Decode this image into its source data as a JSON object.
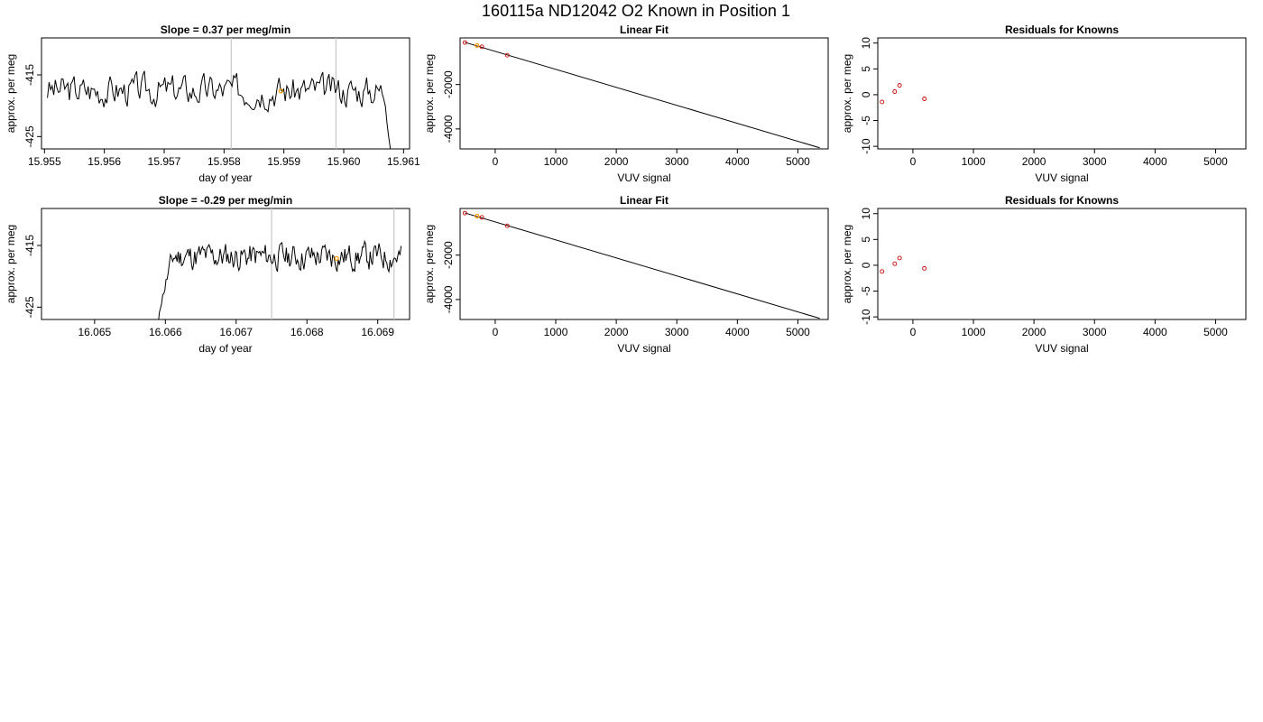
{
  "figure": {
    "title": "160115a     ND12042   O2 Known in Position  1"
  },
  "colors": {
    "line": "#000000",
    "grid_marker": "#c8c8c8",
    "known_point": "#cc0000",
    "highlight_point": "#ff9900"
  },
  "chart_data": [
    {
      "type": "line",
      "title": "Slope =  0.37  per meg/min",
      "xlabel": "day of year",
      "ylabel": "approx. per meg",
      "xlim": [
        15.95495,
        15.9611
      ],
      "ylim": [
        -427,
        -409
      ],
      "xticks": [
        15.955,
        15.956,
        15.957,
        15.958,
        15.959,
        15.96,
        15.961
      ],
      "xtick_labels": [
        "15.955",
        "15.956",
        "15.957",
        "15.958",
        "15.959",
        "15.960",
        "15.961"
      ],
      "yticks": [
        -425,
        -415
      ],
      "ytick_labels": [
        "-425",
        "-415"
      ],
      "vlines": [
        15.95812,
        15.95987
      ],
      "highlight": [
        {
          "x": 15.95895,
          "y": -417.6
        }
      ],
      "trace": {
        "x_start": 15.95505,
        "x_end": 15.9608,
        "base": -417.5,
        "amp": 2.2,
        "seed": 3,
        "end_drop": true,
        "drop_to": -429
      }
    },
    {
      "type": "scatter",
      "title": "Linear Fit",
      "xlabel": "VUV signal",
      "ylabel": "approx. per meg",
      "xlim": [
        -580,
        5500
      ],
      "ylim": [
        -4900,
        100
      ],
      "xticks": [
        0,
        1000,
        2000,
        3000,
        4000,
        5000
      ],
      "xtick_labels": [
        "0",
        "1000",
        "2000",
        "3000",
        "4000",
        "5000"
      ],
      "yticks": [
        -4000,
        -2000
      ],
      "ytick_labels": [
        "-4000",
        "-2000"
      ],
      "fit_line": {
        "x": [
          -500,
          5360
        ],
        "y": [
          -100,
          -4850
        ]
      },
      "points": [
        {
          "x": -500,
          "y": -110
        },
        {
          "x": -220,
          "y": -300
        },
        {
          "x": 200,
          "y": -680
        }
      ],
      "highlight": [
        {
          "x": -300,
          "y": -240
        }
      ]
    },
    {
      "type": "scatter",
      "title": "Residuals for Knowns",
      "xlabel": "VUV signal",
      "ylabel": "approx. per meg",
      "xlim": [
        -580,
        5500
      ],
      "ylim": [
        -10.5,
        11
      ],
      "xticks": [
        0,
        1000,
        2000,
        3000,
        4000,
        5000
      ],
      "xtick_labels": [
        "0",
        "1000",
        "2000",
        "3000",
        "4000",
        "5000"
      ],
      "yticks": [
        -10,
        -5,
        0,
        5,
        10
      ],
      "ytick_labels": [
        "-10",
        "-5",
        "0",
        "5",
        "10"
      ],
      "points": [
        {
          "x": -510,
          "y": -1.4
        },
        {
          "x": -300,
          "y": 0.6
        },
        {
          "x": -220,
          "y": 1.8
        },
        {
          "x": 190,
          "y": -0.8
        }
      ]
    },
    {
      "type": "line",
      "title": "Slope =  -0.29  per meg/min",
      "xlabel": "day of year",
      "ylabel": "approx. per meg",
      "xlim": [
        16.06425,
        16.06945
      ],
      "ylim": [
        -427,
        -409
      ],
      "xticks": [
        16.065,
        16.066,
        16.067,
        16.068,
        16.069
      ],
      "xtick_labels": [
        "16.065",
        "16.066",
        "16.067",
        "16.068",
        "16.069"
      ],
      "yticks": [
        -425,
        -415
      ],
      "ytick_labels": [
        "-425",
        "-415"
      ],
      "vlines": [
        16.0675,
        16.06923
      ],
      "highlight": [
        {
          "x": 16.06842,
          "y": -417.1
        }
      ],
      "trace": {
        "x_start": 16.0659,
        "x_end": 16.06933,
        "base": -416.8,
        "amp": 1.9,
        "seed": 11,
        "start_rise": true,
        "rise_from": -427.5
      }
    },
    {
      "type": "scatter",
      "title": "Linear Fit",
      "xlabel": "VUV signal",
      "ylabel": "approx. per meg",
      "xlim": [
        -580,
        5500
      ],
      "ylim": [
        -4900,
        100
      ],
      "xticks": [
        0,
        1000,
        2000,
        3000,
        4000,
        5000
      ],
      "xtick_labels": [
        "0",
        "1000",
        "2000",
        "3000",
        "4000",
        "5000"
      ],
      "yticks": [
        -4000,
        -2000
      ],
      "ytick_labels": [
        "-4000",
        "-2000"
      ],
      "fit_line": {
        "x": [
          -500,
          5360
        ],
        "y": [
          -100,
          -4850
        ]
      },
      "points": [
        {
          "x": -500,
          "y": -110
        },
        {
          "x": -220,
          "y": -300
        },
        {
          "x": 200,
          "y": -680
        }
      ],
      "highlight": [
        {
          "x": -300,
          "y": -240
        }
      ]
    },
    {
      "type": "scatter",
      "title": "Residuals for Knowns",
      "xlabel": "VUV signal",
      "ylabel": "approx. per meg",
      "xlim": [
        -580,
        5500
      ],
      "ylim": [
        -10.5,
        11
      ],
      "xticks": [
        0,
        1000,
        2000,
        3000,
        4000,
        5000
      ],
      "xtick_labels": [
        "0",
        "1000",
        "2000",
        "3000",
        "4000",
        "5000"
      ],
      "yticks": [
        -10,
        -5,
        0,
        5,
        10
      ],
      "ytick_labels": [
        "-10",
        "-5",
        "0",
        "5",
        "10"
      ],
      "points": [
        {
          "x": -510,
          "y": -1.2
        },
        {
          "x": -300,
          "y": 0.3
        },
        {
          "x": -220,
          "y": 1.4
        },
        {
          "x": 190,
          "y": -0.6
        }
      ]
    }
  ]
}
